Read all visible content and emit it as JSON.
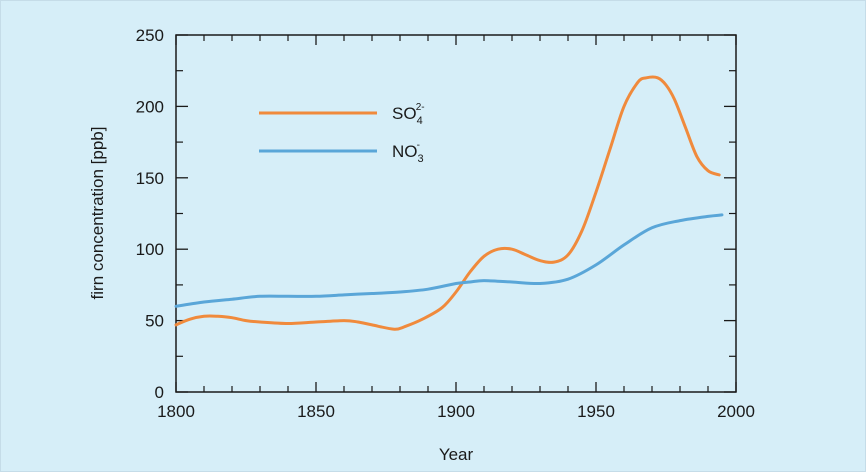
{
  "chart_data": {
    "type": "line",
    "xlabel": "Year",
    "ylabel": "firn concentration  [ppb]",
    "xlim": [
      1800,
      2000
    ],
    "ylim": [
      0,
      250
    ],
    "x_ticks": [
      1800,
      1850,
      1900,
      1950,
      2000
    ],
    "y_ticks": [
      0,
      50,
      100,
      150,
      200,
      250
    ],
    "grid": false,
    "legend_position": "top-left",
    "series": [
      {
        "name": "SO4 2-",
        "label_main": "SO",
        "label_sub": "4",
        "label_sup": "2-",
        "color": "#f08a3c",
        "x": [
          1800,
          1805,
          1810,
          1815,
          1820,
          1825,
          1830,
          1840,
          1850,
          1860,
          1865,
          1870,
          1878,
          1882,
          1888,
          1895,
          1900,
          1905,
          1910,
          1915,
          1920,
          1925,
          1930,
          1935,
          1940,
          1945,
          1950,
          1955,
          1960,
          1965,
          1968,
          1972,
          1975,
          1978,
          1982,
          1986,
          1990,
          1994
        ],
        "y": [
          47,
          51,
          53,
          53,
          52,
          50,
          49,
          48,
          49,
          50,
          49,
          47,
          44,
          46,
          51,
          59,
          70,
          84,
          95,
          100,
          100,
          96,
          92,
          91,
          96,
          113,
          140,
          170,
          200,
          217,
          220,
          220,
          215,
          205,
          185,
          165,
          155,
          152
        ]
      },
      {
        "name": "NO3 -",
        "label_main": "NO",
        "label_sub": "3",
        "label_sup": "-",
        "color": "#5aa6d8",
        "x": [
          1800,
          1810,
          1820,
          1830,
          1840,
          1850,
          1860,
          1870,
          1880,
          1890,
          1900,
          1905,
          1910,
          1920,
          1930,
          1940,
          1950,
          1960,
          1970,
          1980,
          1990,
          1995
        ],
        "y": [
          60,
          63,
          65,
          67,
          67,
          67,
          68,
          69,
          70,
          72,
          76,
          77,
          78,
          77,
          76,
          79,
          89,
          103,
          115,
          120,
          123,
          124
        ]
      }
    ]
  }
}
